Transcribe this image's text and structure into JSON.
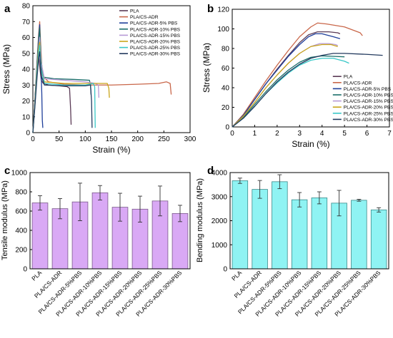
{
  "figure": {
    "panels": [
      {
        "id": "a",
        "letter": "a"
      },
      {
        "id": "b",
        "letter": "b"
      },
      {
        "id": "c",
        "letter": "c"
      },
      {
        "id": "d",
        "letter": "d"
      }
    ]
  },
  "chart_data": [
    {
      "panel": "a",
      "type": "line",
      "xlabel": "Strain (%)",
      "ylabel": "Stress (MPa)",
      "xlim": [
        0,
        300
      ],
      "ylim": [
        0,
        80
      ],
      "xticks": [
        0,
        50,
        100,
        150,
        200,
        250,
        300
      ],
      "yticks": [
        0,
        10,
        20,
        30,
        40,
        50,
        60,
        70,
        80
      ],
      "legend_position": "top-right",
      "series": [
        {
          "name": "PLA",
          "color": "#5a3a55",
          "points": [
            [
              0,
              0
            ],
            [
              3,
              14
            ],
            [
              6,
              30
            ],
            [
              9,
              43
            ],
            [
              11,
              48
            ],
            [
              13,
              42
            ],
            [
              16,
              33
            ],
            [
              20,
              31
            ],
            [
              30,
              30
            ],
            [
              50,
              29.5
            ],
            [
              65,
              29
            ],
            [
              70,
              28
            ],
            [
              72,
              15
            ],
            [
              73,
              5
            ]
          ]
        },
        {
          "name": "PLA/CS-ADR",
          "color": "#c9674a",
          "points": [
            [
              0,
              0
            ],
            [
              4,
              22
            ],
            [
              8,
              45
            ],
            [
              11,
              62
            ],
            [
              13,
              70
            ],
            [
              15,
              55
            ],
            [
              18,
              36
            ],
            [
              30,
              32
            ],
            [
              60,
              30.5
            ],
            [
              100,
              30
            ],
            [
              150,
              30
            ],
            [
              200,
              30.5
            ],
            [
              240,
              31
            ],
            [
              255,
              32
            ],
            [
              262,
              31
            ],
            [
              264,
              24
            ]
          ]
        },
        {
          "name": "PLA/CS-ADR-5% PBS",
          "color": "#1f3f9a",
          "points": [
            [
              0,
              0
            ],
            [
              4,
              21
            ],
            [
              8,
              44
            ],
            [
              11,
              60
            ],
            [
              13,
              68
            ],
            [
              15,
              46
            ],
            [
              17,
              25
            ],
            [
              18,
              8
            ],
            [
              19,
              3
            ]
          ]
        },
        {
          "name": "PLA/CS-ADR-10% PBS",
          "color": "#1b6e6a",
          "points": [
            [
              0,
              0
            ],
            [
              4,
              20
            ],
            [
              8,
              43
            ],
            [
              11,
              58
            ],
            [
              13,
              66
            ],
            [
              16,
              45
            ],
            [
              20,
              35
            ],
            [
              40,
              34
            ],
            [
              80,
              33.5
            ],
            [
              108,
              33
            ],
            [
              110,
              30
            ],
            [
              111,
              24
            ]
          ]
        },
        {
          "name": "PLA/CS-ADR-15% PBS",
          "color": "#b79ad6",
          "points": [
            [
              0,
              0
            ],
            [
              4,
              19
            ],
            [
              8,
              40
            ],
            [
              11,
              54
            ],
            [
              13,
              60
            ],
            [
              16,
              44
            ],
            [
              22,
              34
            ],
            [
              60,
              33
            ],
            [
              100,
              32
            ],
            [
              120,
              31
            ],
            [
              125,
              30
            ],
            [
              126,
              22
            ]
          ]
        },
        {
          "name": "PLA/CS-ADR-20% PBS",
          "color": "#c9a51a",
          "points": [
            [
              0,
              0
            ],
            [
              4,
              19
            ],
            [
              8,
              40
            ],
            [
              11,
              53
            ],
            [
              13,
              57
            ],
            [
              16,
              40
            ],
            [
              22,
              32
            ],
            [
              60,
              31
            ],
            [
              100,
              31
            ],
            [
              130,
              31
            ],
            [
              142,
              31
            ],
            [
              145,
              28
            ],
            [
              146,
              22
            ]
          ]
        },
        {
          "name": "PLA/CS-ADR-25% PBS",
          "color": "#38c7c7",
          "points": [
            [
              0,
              0
            ],
            [
              4,
              18
            ],
            [
              8,
              38
            ],
            [
              11,
              50
            ],
            [
              13,
              55
            ],
            [
              16,
              40
            ],
            [
              22,
              31
            ],
            [
              60,
              30
            ],
            [
              100,
              30
            ],
            [
              115,
              31
            ],
            [
              118,
              29
            ],
            [
              119,
              3
            ]
          ]
        },
        {
          "name": "PLA/CS-ADR-30% PBS",
          "color": "#233a5e",
          "points": [
            [
              0,
              0
            ],
            [
              4,
              17
            ],
            [
              8,
              35
            ],
            [
              11,
              47
            ],
            [
              13,
              51
            ],
            [
              16,
              36
            ],
            [
              22,
              30
            ],
            [
              60,
              29.5
            ],
            [
              100,
              29.5
            ],
            [
              110,
              30
            ],
            [
              112,
              20
            ],
            [
              113,
              3
            ]
          ]
        }
      ]
    },
    {
      "panel": "b",
      "type": "line",
      "xlabel": "Strain (%)",
      "ylabel": "Stress (MPa)",
      "xlim": [
        0,
        7
      ],
      "ylim": [
        0,
        120
      ],
      "xticks": [
        0,
        1,
        2,
        3,
        4,
        5,
        6,
        7
      ],
      "yticks": [
        0,
        20,
        40,
        60,
        80,
        100,
        120
      ],
      "legend_position": "bottom-right",
      "series": [
        {
          "name": "PLA",
          "color": "#5a3a55",
          "points": [
            [
              0,
              0
            ],
            [
              0.5,
              12
            ],
            [
              1,
              28
            ],
            [
              1.5,
              44
            ],
            [
              2,
              59
            ],
            [
              2.5,
              73
            ],
            [
              3,
              86
            ],
            [
              3.4,
              94
            ],
            [
              3.8,
              97
            ],
            [
              4.3,
              97
            ],
            [
              4.7,
              96
            ],
            [
              4.8,
              95
            ]
          ]
        },
        {
          "name": "PLA/CS-ADR",
          "color": "#c9674a",
          "points": [
            [
              0,
              0
            ],
            [
              0.5,
              13
            ],
            [
              1,
              30
            ],
            [
              1.5,
              47
            ],
            [
              2,
              63
            ],
            [
              2.5,
              78
            ],
            [
              3,
              92
            ],
            [
              3.5,
              102
            ],
            [
              3.8,
              106
            ],
            [
              4.2,
              105
            ],
            [
              5,
              102
            ],
            [
              5.7,
              96
            ],
            [
              5.8,
              93
            ]
          ]
        },
        {
          "name": "PLA/CS-ADR-5% PBS",
          "color": "#1f3f9a",
          "points": [
            [
              0,
              0
            ],
            [
              0.5,
              12
            ],
            [
              1,
              28
            ],
            [
              1.5,
              44
            ],
            [
              2,
              58
            ],
            [
              2.5,
              72
            ],
            [
              3,
              84
            ],
            [
              3.4,
              92
            ],
            [
              3.7,
              95
            ],
            [
              4,
              95
            ],
            [
              4.5,
              92
            ],
            [
              4.8,
              90
            ]
          ]
        },
        {
          "name": "PLA/CS-ADR-10% PBS",
          "color": "#1b6e6a",
          "points": [
            [
              0,
              0
            ],
            [
              0.5,
              10
            ],
            [
              1,
              23
            ],
            [
              1.5,
              36
            ],
            [
              2,
              48
            ],
            [
              2.5,
              58
            ],
            [
              3,
              66
            ],
            [
              3.5,
              71
            ],
            [
              4,
              72.5
            ],
            [
              4.5,
              72
            ],
            [
              5,
              71.5
            ]
          ]
        },
        {
          "name": "PLA/CS-ADR-15% PBS",
          "color": "#b79ad6",
          "points": [
            [
              0,
              0
            ],
            [
              0.5,
              11
            ],
            [
              1,
              25
            ],
            [
              1.5,
              40
            ],
            [
              2,
              53
            ],
            [
              2.5,
              65
            ],
            [
              3,
              75
            ],
            [
              3.5,
              82
            ],
            [
              3.9,
              85
            ],
            [
              4.3,
              85
            ],
            [
              4.6,
              84
            ],
            [
              4.7,
              83
            ]
          ]
        },
        {
          "name": "PLA/CS-ADR-20% PBS",
          "color": "#c9a51a",
          "points": [
            [
              0,
              0
            ],
            [
              0.5,
              11
            ],
            [
              1,
              25
            ],
            [
              1.5,
              40
            ],
            [
              2,
              53
            ],
            [
              2.5,
              65
            ],
            [
              3,
              75
            ],
            [
              3.5,
              82
            ],
            [
              4,
              84
            ],
            [
              4.4,
              84
            ],
            [
              4.7,
              82
            ]
          ]
        },
        {
          "name": "PLA/CS-ADR-25% PBS",
          "color": "#38c7c7",
          "points": [
            [
              0,
              0
            ],
            [
              0.5,
              9
            ],
            [
              1,
              21
            ],
            [
              1.5,
              34
            ],
            [
              2,
              45
            ],
            [
              2.5,
              55
            ],
            [
              3,
              63
            ],
            [
              3.5,
              68
            ],
            [
              4,
              70
            ],
            [
              4.5,
              70
            ],
            [
              5,
              67
            ],
            [
              5.2,
              65
            ]
          ]
        },
        {
          "name": "PLA/CS-ADR-30% PBS",
          "color": "#233a5e",
          "points": [
            [
              0,
              0
            ],
            [
              0.5,
              9
            ],
            [
              1,
              21
            ],
            [
              1.5,
              34
            ],
            [
              2,
              46
            ],
            [
              2.5,
              56
            ],
            [
              3,
              64
            ],
            [
              3.5,
              70
            ],
            [
              4,
              73
            ],
            [
              4.5,
              75
            ],
            [
              5,
              75
            ],
            [
              6,
              74
            ],
            [
              6.7,
              73
            ]
          ]
        }
      ]
    },
    {
      "panel": "c",
      "type": "bar",
      "ylabel": "Tensile modulus (MPa)",
      "ylim": [
        0,
        1000
      ],
      "yticks": [
        0,
        200,
        400,
        600,
        800,
        1000
      ],
      "categories": [
        "PLA",
        "PLA/CS-ADR",
        "PLA/CS-ADR-5%PBS",
        "PLA/CS-ADR-10%PBS",
        "PLA/CS-ADR-15%PBS",
        "PLA/CS-ADR-20%PBS",
        "PLA/CS-ADR-25%PBS",
        "PLA/CS-ADR-30%PBS"
      ],
      "values": [
        685,
        625,
        695,
        790,
        640,
        620,
        705,
        575
      ],
      "errors": [
        75,
        105,
        195,
        75,
        145,
        135,
        155,
        85
      ],
      "bar_color": "#d9a9f5",
      "edge_color": "#7a5a8a"
    },
    {
      "panel": "d",
      "type": "bar",
      "ylabel": "Bending modulus (MPa)",
      "ylim": [
        0,
        4000
      ],
      "yticks": [
        0,
        1000,
        2000,
        3000,
        4000
      ],
      "categories": [
        "PLA",
        "PLA/CS-ADR",
        "PLA/CS-ADR-5%PBS",
        "PLA/CS-ADR-10%PBS",
        "PLA/CS-ADR-15%PBS",
        "PLA/CS-ADR-20%PBS",
        "PLA/CS-ADR-25%PBS",
        "PLA/CS-ADR-30%PBS"
      ],
      "values": [
        3660,
        3300,
        3620,
        2870,
        2950,
        2730,
        2850,
        2450
      ],
      "errors": [
        110,
        370,
        290,
        300,
        250,
        530,
        40,
        90
      ],
      "bar_color": "#8ff3f3",
      "edge_color": "#3a8a8a"
    }
  ]
}
